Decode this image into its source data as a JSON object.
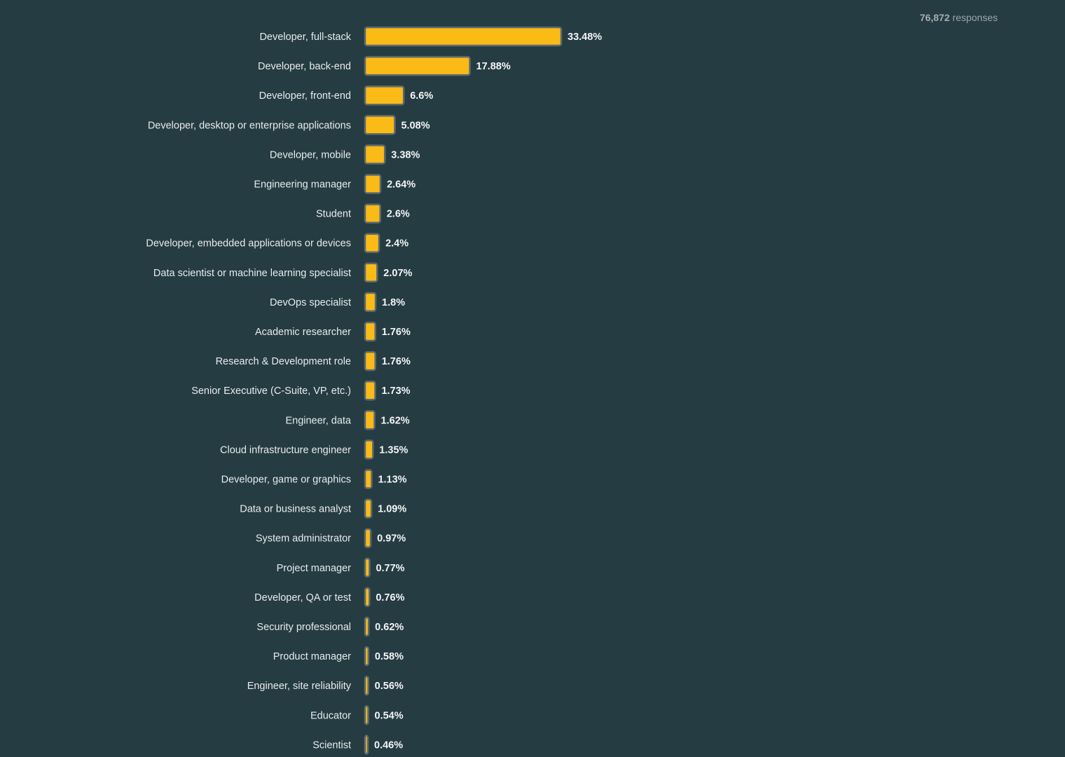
{
  "header": {
    "responses_count": "76,872",
    "responses_word": "responses"
  },
  "colors": {
    "background": "#263c43",
    "bar_fill": "#fbbb16",
    "bar_stroke": "#5c6a6e"
  },
  "chart_data": {
    "type": "bar",
    "orientation": "horizontal",
    "unit": "%",
    "xlim": [
      0,
      33.48
    ],
    "categories": [
      "Developer, full-stack",
      "Developer, back-end",
      "Developer, front-end",
      "Developer, desktop or enterprise applications",
      "Developer, mobile",
      "Engineering manager",
      "Student",
      "Developer, embedded applications or devices",
      "Data scientist or machine learning specialist",
      "DevOps specialist",
      "Academic researcher",
      "Research & Development role",
      "Senior Executive (C-Suite, VP, etc.)",
      "Engineer, data",
      "Cloud infrastructure engineer",
      "Developer, game or graphics",
      "Data or business analyst",
      "System administrator",
      "Project manager",
      "Developer, QA or test",
      "Security professional",
      "Product manager",
      "Engineer, site reliability",
      "Educator",
      "Scientist"
    ],
    "values": [
      33.48,
      17.88,
      6.6,
      5.08,
      3.38,
      2.64,
      2.6,
      2.4,
      2.07,
      1.8,
      1.76,
      1.76,
      1.73,
      1.62,
      1.35,
      1.13,
      1.09,
      0.97,
      0.77,
      0.76,
      0.62,
      0.58,
      0.56,
      0.54,
      0.46
    ],
    "value_labels": [
      "33.48%",
      "17.88%",
      "6.6%",
      "5.08%",
      "3.38%",
      "2.64%",
      "2.6%",
      "2.4%",
      "2.07%",
      "1.8%",
      "1.76%",
      "1.76%",
      "1.73%",
      "1.62%",
      "1.35%",
      "1.13%",
      "1.09%",
      "0.97%",
      "0.77%",
      "0.76%",
      "0.62%",
      "0.58%",
      "0.56%",
      "0.54%",
      "0.46%"
    ]
  }
}
